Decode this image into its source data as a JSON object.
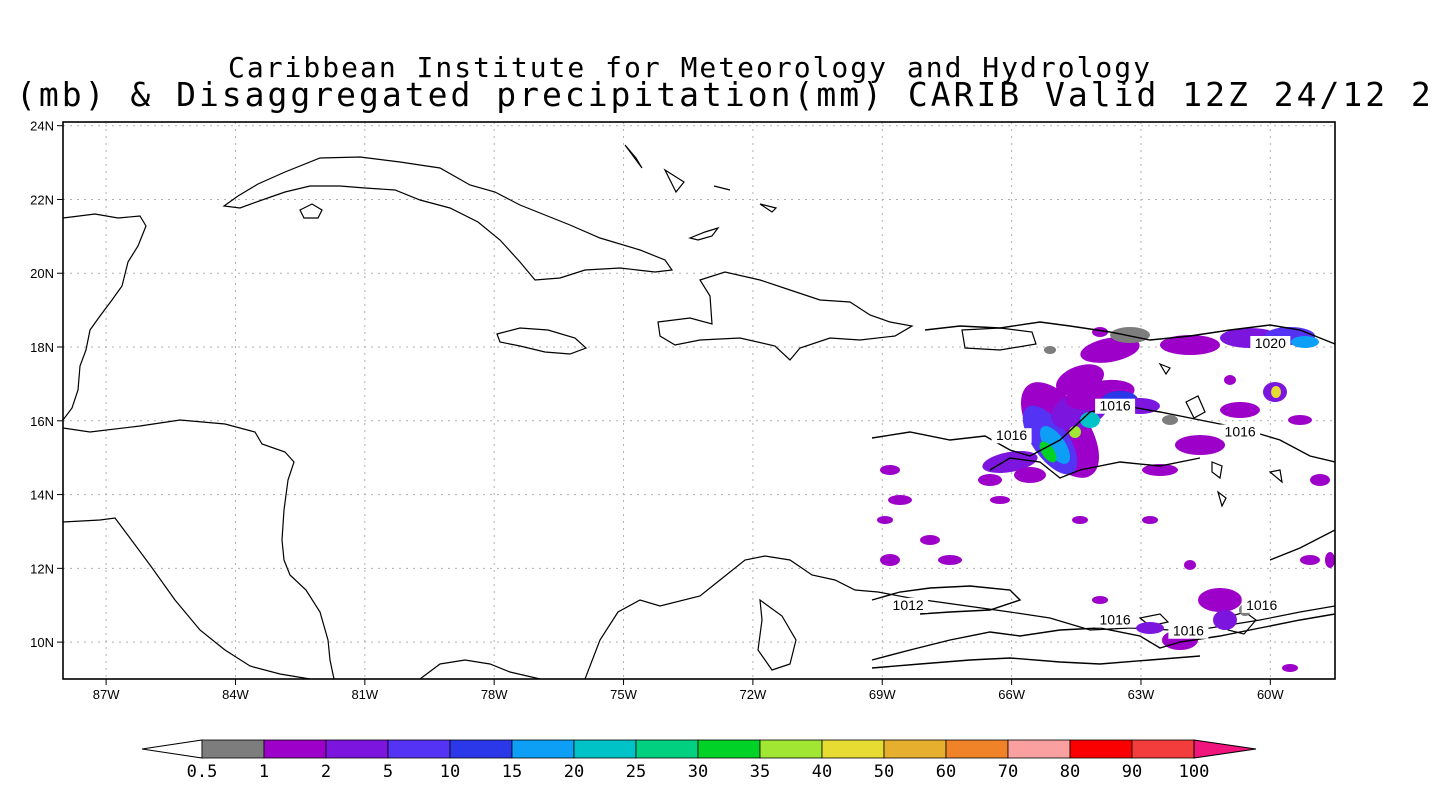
{
  "title": {
    "line1": "Caribbean Institute for Meteorology and Hydrology",
    "line2": "(mb) & Disaggregated precipitation(mm) CARIB Valid 12Z 24/12 2"
  },
  "map": {
    "lon_range": [
      -88.0,
      -58.5
    ],
    "lat_range": [
      9.0,
      24.1
    ],
    "lon_ticks": [
      {
        "value": -87,
        "label": "87W"
      },
      {
        "value": -84,
        "label": "84W"
      },
      {
        "value": -81,
        "label": "81W"
      },
      {
        "value": -78,
        "label": "78W"
      },
      {
        "value": -75,
        "label": "75W"
      },
      {
        "value": -72,
        "label": "72W"
      },
      {
        "value": -69,
        "label": "69W"
      },
      {
        "value": -66,
        "label": "66W"
      },
      {
        "value": -63,
        "label": "63W"
      },
      {
        "value": -60,
        "label": "60W"
      }
    ],
    "lat_ticks": [
      {
        "value": 24,
        "label": "24N"
      },
      {
        "value": 22,
        "label": "22N"
      },
      {
        "value": 20,
        "label": "20N"
      },
      {
        "value": 18,
        "label": "18N"
      },
      {
        "value": 16,
        "label": "16N"
      },
      {
        "value": 14,
        "label": "14N"
      },
      {
        "value": 12,
        "label": "12N"
      },
      {
        "value": 10,
        "label": "10N"
      }
    ],
    "grid": true,
    "pressure_labels": [
      {
        "lon": -60.0,
        "lat": 18.0,
        "text": "1020"
      },
      {
        "lon": -63.6,
        "lat": 16.3,
        "text": "1016"
      },
      {
        "lon": -66.0,
        "lat": 15.5,
        "text": "1016"
      },
      {
        "lon": -60.7,
        "lat": 15.6,
        "text": "1016"
      },
      {
        "lon": -60.2,
        "lat": 10.9,
        "text": "1016"
      },
      {
        "lon": -68.4,
        "lat": 10.9,
        "text": "1012"
      },
      {
        "lon": -63.6,
        "lat": 10.5,
        "text": "1016"
      },
      {
        "lon": -61.9,
        "lat": 10.2,
        "text": "1016"
      }
    ]
  },
  "colorbar": {
    "labels": [
      "0.5",
      "1",
      "2",
      "5",
      "10",
      "15",
      "20",
      "25",
      "30",
      "35",
      "40",
      "50",
      "60",
      "70",
      "80",
      "90",
      "100"
    ],
    "colors": [
      "#7d7d7d",
      "#9d00c8",
      "#7c16df",
      "#5533f4",
      "#2b38ea",
      "#0c9ff5",
      "#00c3c8",
      "#00d080",
      "#00d228",
      "#a0e632",
      "#e6dc32",
      "#e6af2d",
      "#f08228",
      "#fba0a0",
      "#fa0000",
      "#f33c3c"
    ],
    "over_color": "#f0147d",
    "under_color": "#ffffff"
  }
}
